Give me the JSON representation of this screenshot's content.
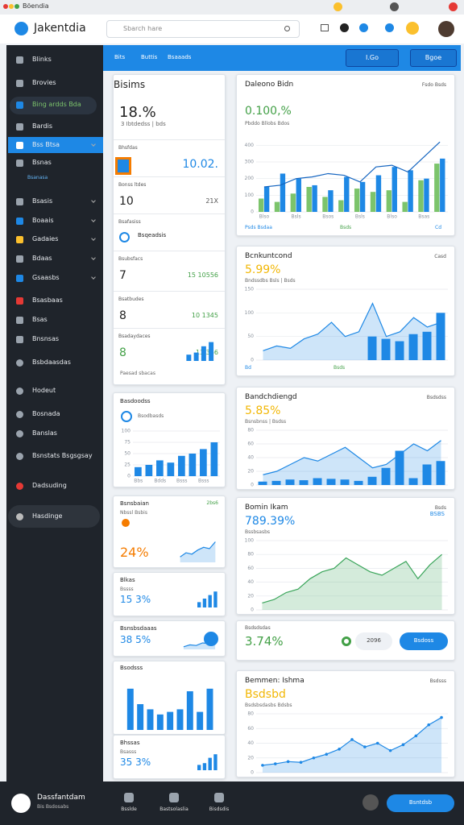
{
  "browser": {
    "title": "Böendia"
  },
  "header": {
    "brand": "Jakentdia",
    "search": "Sbarch hare"
  },
  "sidebar": {
    "items": [
      "Blinks",
      "Brovies",
      "Bing ardds Bda",
      "Bardis",
      "Bss Btsa",
      "Bsnas",
      "Bsanasa",
      "Bsasis",
      "Boaais",
      "Gadaies",
      "Bdaas",
      "Gsaasbs",
      "Bsasbaas",
      "Bsas",
      "Bnsnsas",
      "Bsbdaasdas",
      "Hodeut",
      "Bosnada",
      "Banslas",
      "Bsnstats Bsgsgsay",
      "Dadsuding",
      "Hasdinge"
    ]
  },
  "toolbar": {
    "tabs": [
      "Bits",
      "Buttis",
      "Bsaaads"
    ],
    "buttons": [
      "I.Go",
      "Bgoe"
    ]
  },
  "left": {
    "summary": {
      "title": "Bisims",
      "value": "18.%",
      "note": "3 Ibtdedss | bds",
      "rows": [
        {
          "label": "Bhsfdas",
          "value": "10.02."
        },
        {
          "label": "Bonss ltdes",
          "value": "10",
          "aside": "21X"
        },
        {
          "label": "Bsafasiss",
          "value": "Bsqeadsis"
        },
        {
          "label": "Bsubsfacs",
          "value": "7",
          "aside": "15 10556"
        },
        {
          "label": "Bsatbudes",
          "value": "8",
          "aside": "10 1345"
        },
        {
          "label": "Bsadaydaces",
          "value": "8",
          "aside": "13.356"
        }
      ],
      "footer": "Paesad sbacas",
      "chart": {
        "type": "bar",
        "ylim": [
          0,
          10
        ],
        "series": [
          {
            "type": "bar",
            "color": "#1e88e5",
            "values": [
              3,
              4,
              7,
              9
            ]
          }
        ]
      }
    },
    "bars_panel": {
      "title": "Basdoodss",
      "note": "Bsodbasds",
      "chart": {
        "type": "bar",
        "ylim": [
          0,
          100
        ],
        "yticks": [
          0,
          25,
          50,
          75,
          100
        ],
        "categories": [
          "Bbs",
          null,
          "Bdds",
          null,
          "Bsss",
          null,
          "Bsss",
          null
        ],
        "series": [
          {
            "type": "bar",
            "color": "#1e88e5",
            "values": [
              20,
              25,
              35,
              30,
              45,
              50,
              60,
              75
            ]
          }
        ]
      }
    },
    "kpi1": {
      "title": "Bsnsbaian",
      "aside": "2bs6",
      "note": "Nbssl Bsbis",
      "value": "24%",
      "chart": {
        "type": "area",
        "ylim": [
          0,
          100
        ],
        "series": [
          {
            "type": "area",
            "color": "#1e88e5",
            "values": [
              20,
              35,
              30,
              45,
              55,
              50,
              75
            ]
          }
        ]
      }
    },
    "kpi2": {
      "title": "Blkas",
      "note": "Bssss",
      "value": "15 3%",
      "chart": {
        "type": "bar",
        "ylim": [
          0,
          10
        ],
        "series": [
          {
            "type": "bar",
            "color": "#1e88e5",
            "values": [
              3,
              5,
              7,
              9
            ]
          }
        ]
      }
    },
    "kpi3": {
      "title": "Bsnsbsdaaas",
      "value": "38 5%",
      "chart": {
        "type": "area",
        "ylim": [
          0,
          100
        ],
        "series": [
          {
            "type": "area",
            "color": "#1e88e5",
            "values": [
              20,
              35,
              30,
              50,
              45,
              60
            ]
          }
        ]
      }
    },
    "bars2": {
      "title": "Bsodsss",
      "chart": {
        "type": "bar",
        "ylim": [
          0,
          100
        ],
        "series": [
          {
            "type": "bar",
            "color": "#1e88e5",
            "values": [
              80,
              50,
              40,
              30,
              35,
              40,
              75,
              35,
              80
            ]
          }
        ]
      }
    },
    "kpi4": {
      "title": "Bhssas",
      "note": "Bsasss",
      "value": "35 3%",
      "chart": {
        "type": "bar",
        "ylim": [
          0,
          10
        ],
        "series": [
          {
            "type": "bar",
            "color": "#1e88e5",
            "values": [
              3,
              4,
              7,
              9
            ]
          }
        ]
      }
    }
  },
  "right": [
    {
      "title": "Daleono Bidn",
      "value": "0.100,%",
      "value_color": "#43a047",
      "note": "Pbddo Bllobs Bdos",
      "legend": "Fsdo Bsds",
      "footer": [
        "Psds Bsdaa",
        "Bsds",
        "Cd"
      ],
      "chart": {
        "type": "combo",
        "ylim": [
          0,
          450
        ],
        "yticks": [
          0,
          100,
          200,
          300,
          400
        ],
        "categories": [
          "Blso",
          null,
          "Bsls",
          null,
          "Bsos",
          null,
          "Bsls",
          null,
          "Blso",
          null,
          "Bsas",
          null
        ],
        "series": [
          {
            "type": "bar",
            "color": "#7cc46b",
            "values": [
              80,
              60,
              110,
              150,
              90,
              70,
              140,
              120,
              130,
              60,
              190,
              290
            ]
          },
          {
            "type": "bar",
            "color": "#1e88e5",
            "values": [
              150,
              230,
              200,
              160,
              130,
              210,
              180,
              220,
              270,
              250,
              200,
              320
            ]
          },
          {
            "type": "line",
            "color": "#1565c0",
            "values": [
              150,
              160,
              200,
              210,
              230,
              220,
              180,
              270,
              280,
              240,
              330,
              420
            ]
          }
        ]
      }
    },
    {
      "title": "Bcnkuntcond",
      "value": "5.99%",
      "value_color": "#f2b705",
      "note": "Bndssdbs Bsls | Bsds",
      "legend": "Casd",
      "footer": [
        "Bd",
        "Bsds"
      ],
      "chart": {
        "type": "combo",
        "ylim": [
          0,
          150
        ],
        "yticks": [
          0,
          50,
          100,
          150
        ],
        "series": [
          {
            "type": "area",
            "color": "#1e88e5",
            "values": [
              20,
              30,
              25,
              45,
              55,
              80,
              50,
              60,
              120,
              50,
              60,
              90,
              70,
              80
            ]
          },
          {
            "type": "bar",
            "color": "#1e88e5",
            "values": [
              null,
              null,
              null,
              null,
              null,
              null,
              null,
              null,
              50,
              45,
              40,
              55,
              60,
              100
            ]
          }
        ]
      }
    },
    {
      "title": "Bandchdiengd",
      "value": "5.85%",
      "value_color": "#f2b705",
      "note": "Bsnsbnss | Bsdss",
      "legend": "Bsdsdss",
      "footer": [],
      "chart": {
        "type": "combo",
        "ylim": [
          0,
          80
        ],
        "yticks": [
          0,
          20,
          40,
          60,
          80
        ],
        "series": [
          {
            "type": "area",
            "color": "#1e88e5",
            "values": [
              15,
              20,
              30,
              40,
              35,
              45,
              55,
              40,
              25,
              30,
              45,
              60,
              50,
              65
            ]
          },
          {
            "type": "bar",
            "color": "#1e88e5",
            "values": [
              5,
              6,
              8,
              7,
              10,
              9,
              8,
              6,
              12,
              25,
              50,
              10,
              30,
              35
            ]
          }
        ]
      }
    },
    {
      "title": "Bomin Ikam",
      "value": "789.39%",
      "value_color": "#1e88e5",
      "note": "Bssbsasbs",
      "legend": "Bsds",
      "aside": "BSBS",
      "footer": [],
      "chart": {
        "type": "area",
        "ylim": [
          0,
          100
        ],
        "yticks": [
          0,
          20,
          40,
          60,
          80,
          100
        ],
        "series": [
          {
            "type": "area",
            "color": "#3aa55a",
            "values": [
              10,
              15,
              25,
              30,
              45,
              55,
              60,
              75,
              65,
              55,
              50,
              60,
              70,
              45,
              65,
              80
            ]
          }
        ]
      }
    },
    {
      "title": "Bsdsdsdas",
      "value": "3.74%",
      "value_color": "#43a047",
      "pill": "2096",
      "button": "Bsdoss"
    },
    {
      "title": "Bemmen: Ishma",
      "value": "Bsdsbd",
      "value_color": "#f2b705",
      "note": "Bsdsbsdasbs Bdsbs",
      "legend": "Bsdsss",
      "footer": [],
      "chart": {
        "type": "area",
        "ylim": [
          0,
          80
        ],
        "yticks": [
          0,
          20,
          40,
          60,
          80
        ],
        "series": [
          {
            "type": "area",
            "color": "#1e88e5",
            "values": [
              10,
              12,
              15,
              14,
              20,
              25,
              32,
              45,
              35,
              40,
              30,
              38,
              50,
              65,
              75
            ],
            "dots": true
          }
        ]
      }
    }
  ],
  "footer": {
    "name": "Dassfantdam",
    "sub": "Bis Bsdosabs",
    "nav": [
      "Bsslde",
      "Bastsolaslia",
      "Bisdsdis"
    ],
    "button": "Bsntdsb"
  }
}
